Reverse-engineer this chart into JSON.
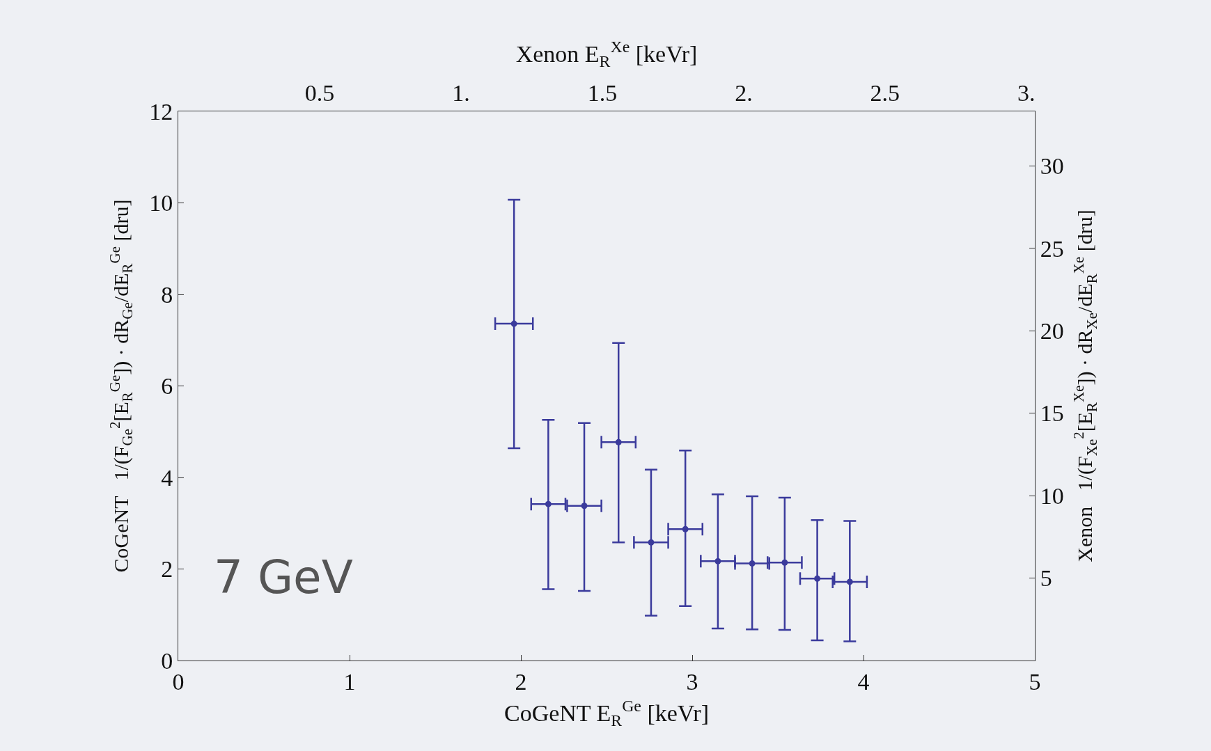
{
  "chart_data": {
    "type": "scatter",
    "xlabel": "CoGeNT E$_{R}$$^{Ge}$ [keVr]",
    "ylabel": "CoGeNT   1/(F$_{Ge}$$^{2}$[E$_{R}$$^{Ge}$]) · dR$_{Ge}$/dE$_{R}$$^{Ge}$ [dru]",
    "x2label": "Xenon E$_{R}$$^{Xe}$ [keVr]",
    "y2label": "Xenon   1/(F$_{Xe}$$^{2}$[E$_{R}$$^{Xe}$]) · dR$_{Xe}$/dE$_{R}$$^{Xe}$ [dru]",
    "annotations": [
      "7 GeV"
    ],
    "x": [
      1.96,
      2.16,
      2.37,
      2.57,
      2.76,
      2.96,
      3.15,
      3.35,
      3.54,
      3.73,
      3.92
    ],
    "series": [
      {
        "color": "#3b3b9c",
        "values": [
          7.36,
          3.42,
          3.38,
          4.77,
          2.58,
          2.87,
          2.17,
          2.12,
          2.14,
          1.79,
          1.72
        ],
        "errors": [
          [
            4.64,
            10.07
          ],
          [
            1.56,
            5.26
          ],
          [
            1.52,
            5.19
          ],
          [
            2.58,
            6.94
          ],
          [
            0.98,
            4.17
          ],
          [
            1.19,
            4.59
          ],
          [
            0.7,
            3.63
          ],
          [
            0.68,
            3.59
          ],
          [
            0.67,
            3.56
          ],
          [
            0.44,
            3.07
          ],
          [
            0.42,
            3.05
          ]
        ],
        "xerrors": [
          0.11,
          0.1,
          0.1,
          0.1,
          0.1,
          0.1,
          0.1,
          0.1,
          0.1,
          0.1,
          0.1
        ]
      }
    ],
    "marker": "circle",
    "xlim": [
      0,
      5
    ],
    "xticks": [
      0,
      1,
      2,
      3,
      4,
      5
    ],
    "ylim": [
      0,
      12
    ],
    "yticks": [
      0,
      2,
      4,
      6,
      8,
      10,
      12
    ],
    "x2lim": [
      0,
      3.03
    ],
    "x2ticks": [
      {
        "value": 0.5,
        "label": "0.5"
      },
      {
        "value": 1,
        "label": "1."
      },
      {
        "value": 1.5,
        "label": "1.5"
      },
      {
        "value": 2,
        "label": "2."
      },
      {
        "value": 2.5,
        "label": "2.5"
      },
      {
        "value": 3,
        "label": "3."
      }
    ],
    "y2lim": [
      0,
      33.3
    ],
    "y2ticks": [
      5,
      10,
      15,
      20,
      25,
      30
    ],
    "grid": false
  }
}
